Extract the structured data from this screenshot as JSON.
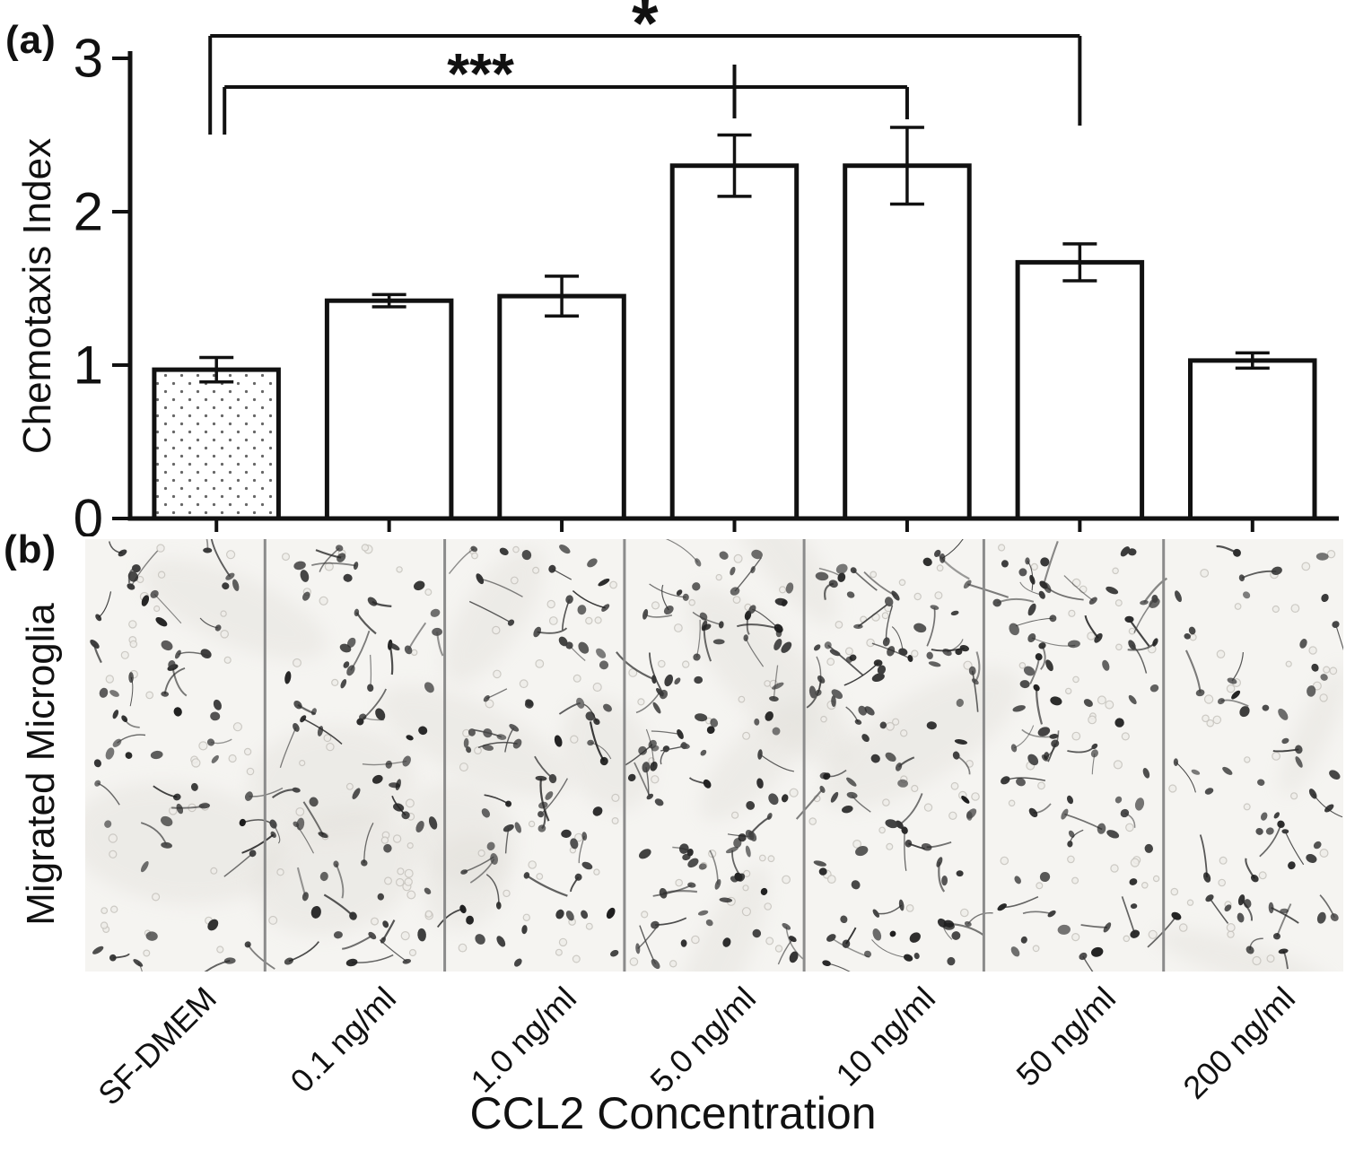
{
  "figure": {
    "panel_a_label": "(a)",
    "panel_b_label": "(b)",
    "panel_b_ylabel": "Migrated Microglia",
    "xlabel": "CCL2 Concentration"
  },
  "chart_data": {
    "type": "bar",
    "title": "",
    "ylabel": "Chemotaxis Index",
    "xlabel": "CCL2 Concentration",
    "categories": [
      "SF-DMEM",
      "0.1 ng/ml",
      "1.0 ng/ml",
      "5.0 ng/ml",
      "10 ng/ml",
      "50 ng/ml",
      "200 ng/ml"
    ],
    "values": [
      0.97,
      1.42,
      1.45,
      2.3,
      2.3,
      1.67,
      1.03
    ],
    "errors": [
      0.08,
      0.04,
      0.13,
      0.2,
      0.25,
      0.12,
      0.05
    ],
    "ylim": [
      0,
      3
    ],
    "yticks": [
      0,
      1,
      2,
      3
    ],
    "bar_styles": [
      "dotted",
      "plain",
      "plain",
      "plain",
      "plain",
      "plain",
      "plain"
    ],
    "grid": false,
    "legend": false,
    "significance": [
      {
        "label": "***",
        "from_index": 0,
        "to_index": 4,
        "tick_index": 3
      },
      {
        "label": "*",
        "from_index": 0,
        "to_index": 5
      }
    ]
  }
}
